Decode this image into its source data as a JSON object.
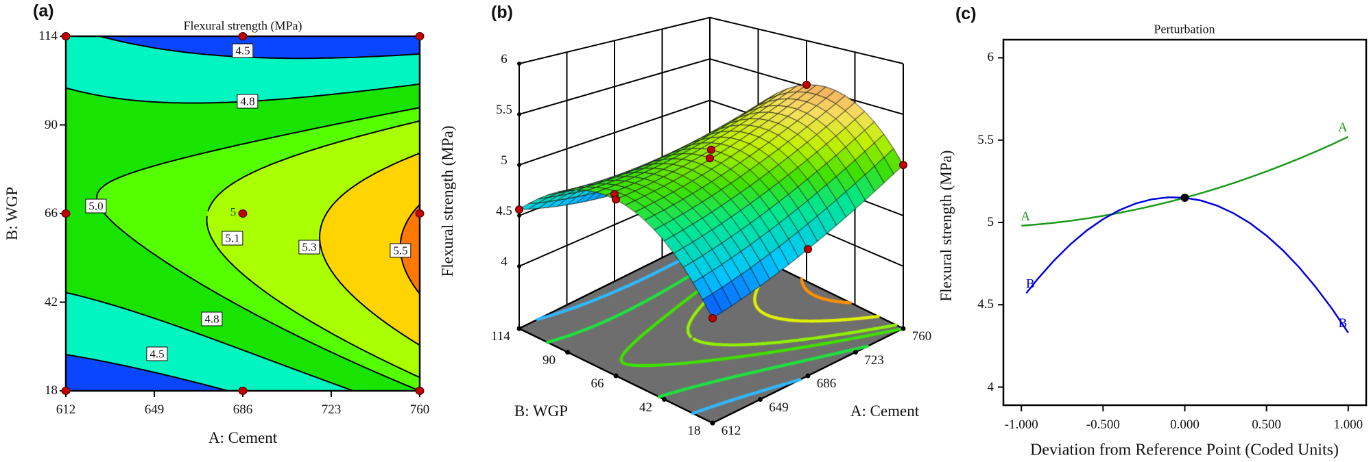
{
  "figure_labels": {
    "a": "(a)",
    "b": "(b)",
    "c": "(c)"
  },
  "chart_data": [
    {
      "type": "contour",
      "title": "Flexural strength (MPa)",
      "xlabel": "A: Cement",
      "ylabel": "B: WGP",
      "x_ticks": [
        "612",
        "649",
        "686",
        "723",
        "760"
      ],
      "y_ticks": [
        "114",
        "90",
        "66",
        "42",
        "18"
      ],
      "xlim": [
        612,
        760
      ],
      "ylim": [
        18,
        114
      ],
      "levels": [
        4.5,
        4.8,
        5.0,
        5.1,
        5.3,
        5.5
      ],
      "contour_labels": [
        "4.5",
        "4.8",
        "5.0",
        "5.1",
        "5.3",
        "5.5",
        "4.8",
        "4.5"
      ],
      "center_point_label": "5",
      "band_colors": [
        "#0a46ff",
        "#00f5c0",
        "#18e400",
        "#55ff00",
        "#aaff00",
        "#ffd400",
        "#ff7800"
      ],
      "design_points": [
        [
          612,
          114
        ],
        [
          686,
          114
        ],
        [
          760,
          114
        ],
        [
          612,
          66
        ],
        [
          686,
          66
        ],
        [
          760,
          66
        ],
        [
          612,
          18
        ],
        [
          686,
          18
        ],
        [
          760,
          18
        ]
      ],
      "point_color": "#c00000"
    },
    {
      "type": "surface",
      "zlabel": "Flexural strength (MPa)",
      "xlabel": "A: Cement",
      "ylabel": "B: WGP",
      "z_ticks": [
        "4",
        "4.5",
        "5",
        "5.5",
        "6"
      ],
      "a_ticks": [
        "612",
        "649",
        "686",
        "723",
        "760"
      ],
      "b_ticks": [
        "18",
        "42",
        "66",
        "90",
        "114"
      ],
      "floor_color": "#6e6e6e",
      "contour_colors": [
        "#30b8ff",
        "#20e040",
        "#40e000",
        "#90f000",
        "#e0f000",
        "#ff9000"
      ]
    },
    {
      "type": "line",
      "title": "Perturbation",
      "xlabel": "Deviation from Reference Point (Coded Units)",
      "ylabel": "Flexural strength (MPa)",
      "x_ticks": [
        "-1.000",
        "-0.500",
        "0.000",
        "0.500",
        "1.000"
      ],
      "y_ticks": [
        "4",
        "4.5",
        "5",
        "5.5",
        "6"
      ],
      "xlim": [
        -1.11,
        1.11
      ],
      "ylim": [
        3.89,
        6.11
      ],
      "reference_point": {
        "x": 0,
        "y": 5.15
      },
      "series": [
        {
          "name": "A",
          "color": "#1a9a1a",
          "x": [
            -1,
            -0.9,
            -0.8,
            -0.7,
            -0.6,
            -0.5,
            -0.4,
            -0.3,
            -0.2,
            -0.1,
            0,
            0.1,
            0.2,
            0.3,
            0.4,
            0.5,
            0.6,
            0.7,
            0.8,
            0.9,
            1
          ],
          "y": [
            4.98,
            4.988,
            4.998,
            5.01,
            5.024,
            5.04,
            5.058,
            5.078,
            5.1,
            5.124,
            5.15,
            5.178,
            5.208,
            5.24,
            5.274,
            5.31,
            5.348,
            5.388,
            5.43,
            5.474,
            5.52
          ]
        },
        {
          "name": "B",
          "color": "#0000e0",
          "x": [
            -0.97,
            -0.9,
            -0.8,
            -0.7,
            -0.6,
            -0.5,
            -0.4,
            -0.3,
            -0.2,
            -0.1,
            0,
            0.1,
            0.2,
            0.3,
            0.4,
            0.5,
            0.6,
            0.7,
            0.8,
            0.9,
            1
          ],
          "y": [
            4.57,
            4.657,
            4.769,
            4.867,
            4.951,
            5.02,
            5.075,
            5.115,
            5.141,
            5.153,
            5.15,
            5.133,
            5.101,
            5.055,
            4.995,
            4.92,
            4.831,
            4.727,
            4.609,
            4.477,
            4.33
          ]
        }
      ]
    }
  ]
}
